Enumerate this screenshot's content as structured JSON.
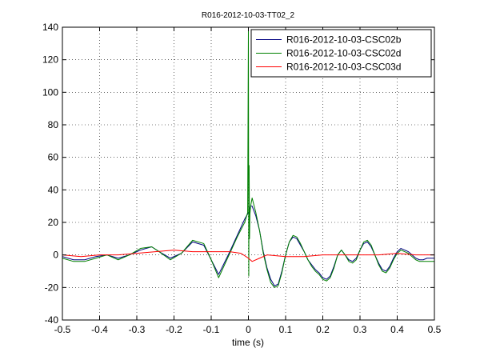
{
  "chart_data": {
    "type": "line",
    "title": "R016-2012-10-03-TT02_2",
    "xlabel": "time (s)",
    "ylabel": "",
    "xlim": [
      -0.5,
      0.5
    ],
    "ylim": [
      -40,
      140
    ],
    "xticks": [
      -0.5,
      -0.4,
      -0.3,
      -0.2,
      -0.1,
      0,
      0.1,
      0.2,
      0.3,
      0.4,
      0.5
    ],
    "xtick_labels": [
      "-0.5",
      "-0.4",
      "-0.3",
      "-0.2",
      "-0.1",
      "0",
      "0.1",
      "0.2",
      "0.3",
      "0.4",
      "0.5"
    ],
    "yticks": [
      -40,
      -20,
      0,
      20,
      40,
      60,
      80,
      100,
      120,
      140
    ],
    "ytick_labels": [
      "-40",
      "-20",
      "0",
      "20",
      "40",
      "60",
      "80",
      "100",
      "120",
      "140"
    ],
    "grid": true,
    "legend_position": "top-right",
    "series": [
      {
        "name": "R016-2012-10-03-CSC02b",
        "color": "#000080",
        "x": [
          -0.5,
          -0.47,
          -0.44,
          -0.41,
          -0.38,
          -0.35,
          -0.32,
          -0.29,
          -0.26,
          -0.24,
          -0.21,
          -0.18,
          -0.15,
          -0.12,
          -0.1,
          -0.08,
          -0.05,
          -0.03,
          -0.01,
          0,
          0.003,
          0.006,
          0.01,
          0.02,
          0.03,
          0.04,
          0.05,
          0.06,
          0.07,
          0.08,
          0.09,
          0.1,
          0.11,
          0.12,
          0.13,
          0.14,
          0.15,
          0.16,
          0.17,
          0.18,
          0.19,
          0.2,
          0.21,
          0.22,
          0.23,
          0.24,
          0.25,
          0.26,
          0.27,
          0.28,
          0.29,
          0.3,
          0.31,
          0.32,
          0.33,
          0.34,
          0.35,
          0.36,
          0.37,
          0.38,
          0.39,
          0.4,
          0.41,
          0.42,
          0.43,
          0.44,
          0.45,
          0.46,
          0.47,
          0.48,
          0.49,
          0.5
        ],
        "y": [
          -1,
          -3,
          -3,
          -1,
          0,
          -2,
          0,
          3,
          5,
          2,
          -2,
          1,
          8,
          6,
          -3,
          -12,
          2,
          12,
          22,
          26,
          28,
          30,
          30,
          24,
          15,
          2,
          -8,
          -15,
          -19,
          -18,
          -10,
          0,
          8,
          11,
          10,
          6,
          2,
          -3,
          -6,
          -9,
          -11,
          -14,
          -15,
          -13,
          -7,
          0,
          3,
          0,
          -3,
          -4,
          -2,
          3,
          7,
          8,
          5,
          0,
          -5,
          -9,
          -10,
          -7,
          -2,
          2,
          4,
          3,
          2,
          0,
          -2,
          -3,
          -3,
          -2,
          -2,
          -2
        ]
      },
      {
        "name": "R016-2012-10-03-CSC02d",
        "color": "#008000",
        "x": [
          -0.5,
          -0.47,
          -0.44,
          -0.41,
          -0.38,
          -0.35,
          -0.32,
          -0.29,
          -0.26,
          -0.24,
          -0.21,
          -0.18,
          -0.15,
          -0.12,
          -0.1,
          -0.08,
          -0.05,
          -0.03,
          -0.01,
          -0.002,
          0,
          0.001,
          0.002,
          0.003,
          0.004,
          0.006,
          0.01,
          0.02,
          0.03,
          0.04,
          0.05,
          0.06,
          0.07,
          0.08,
          0.09,
          0.1,
          0.11,
          0.12,
          0.13,
          0.14,
          0.15,
          0.16,
          0.17,
          0.18,
          0.19,
          0.2,
          0.21,
          0.22,
          0.23,
          0.24,
          0.25,
          0.26,
          0.27,
          0.28,
          0.29,
          0.3,
          0.31,
          0.32,
          0.33,
          0.34,
          0.35,
          0.36,
          0.37,
          0.38,
          0.39,
          0.4,
          0.41,
          0.42,
          0.43,
          0.44,
          0.45,
          0.46,
          0.47,
          0.48,
          0.49,
          0.5
        ],
        "y": [
          -2,
          -4,
          -4,
          -2,
          0,
          -3,
          0,
          4,
          5,
          2,
          -3,
          1,
          9,
          7,
          -3,
          -14,
          1,
          11,
          20,
          26,
          138,
          -13,
          55,
          10,
          25,
          30,
          35,
          26,
          15,
          1,
          -9,
          -17,
          -20,
          -19,
          -11,
          0,
          8,
          12,
          11,
          7,
          2,
          -3,
          -7,
          -10,
          -12,
          -15,
          -16,
          -14,
          -8,
          0,
          3,
          0,
          -4,
          -5,
          -3,
          3,
          8,
          9,
          6,
          0,
          -6,
          -10,
          -11,
          -8,
          -3,
          1,
          3,
          2,
          1,
          -1,
          -3,
          -4,
          -4,
          -4,
          -4,
          -4
        ]
      },
      {
        "name": "R016-2012-10-03-CSC03d",
        "color": "#ff0000",
        "x": [
          -0.5,
          -0.45,
          -0.4,
          -0.35,
          -0.3,
          -0.25,
          -0.2,
          -0.15,
          -0.1,
          -0.05,
          -0.02,
          0,
          0.01,
          0.03,
          0.05,
          0.1,
          0.15,
          0.2,
          0.25,
          0.3,
          0.35,
          0.4,
          0.45,
          0.5
        ],
        "y": [
          0,
          -1,
          0,
          0,
          1,
          2,
          3,
          2,
          2,
          2,
          1,
          -2,
          -4,
          -2,
          0,
          -1,
          -1,
          0,
          0,
          0,
          0,
          1,
          0,
          0
        ]
      }
    ]
  }
}
